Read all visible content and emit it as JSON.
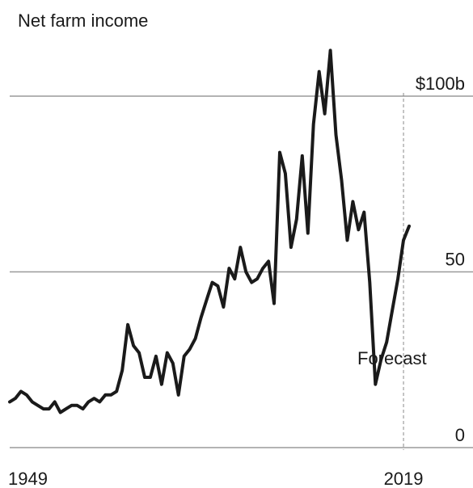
{
  "chart_data": {
    "type": "line",
    "title": "Net farm income",
    "xlabel": "",
    "ylabel": "",
    "x_ticks": [
      1949,
      2019
    ],
    "x_tick_labels": [
      "1949",
      "2019"
    ],
    "xlim": [
      1949,
      2020
    ],
    "ylim": [
      0,
      100
    ],
    "y_ticks": [
      0,
      50,
      100
    ],
    "y_tick_labels": [
      "0",
      "50",
      "$100b"
    ],
    "grid": "horizontal",
    "annotations": [
      {
        "text": "Forecast",
        "x": 2019
      }
    ],
    "forecast_start": 2019,
    "line_color": "#1a1a1a",
    "grid_color": "#9a9a9a",
    "series": [
      {
        "x": [
          1949,
          1950,
          1951,
          1952,
          1953,
          1954,
          1955,
          1956,
          1957,
          1958,
          1959,
          1960,
          1961,
          1962,
          1963,
          1964,
          1965,
          1966,
          1967,
          1968,
          1969,
          1970,
          1971,
          1972,
          1973,
          1974,
          1975,
          1976,
          1977,
          1978,
          1979,
          1980,
          1981,
          1982,
          1983,
          1984,
          1985,
          1986,
          1987,
          1988,
          1989,
          1990,
          1991,
          1992,
          1993,
          1994,
          1995,
          1996,
          1997,
          1998,
          1999,
          2000,
          2001,
          2002,
          2003,
          2004,
          2005,
          2006,
          2007,
          2008,
          2009,
          2010,
          2011,
          2012,
          2013,
          2014,
          2015,
          2016,
          2017,
          2018,
          2019,
          2020
        ],
        "values": [
          13,
          14,
          16,
          15,
          13,
          12,
          11,
          11,
          13,
          10,
          11,
          12,
          12,
          11,
          13,
          14,
          13,
          15,
          15,
          16,
          22,
          35,
          29,
          27,
          20,
          20,
          26,
          18,
          27,
          24,
          15,
          26,
          28,
          31,
          37,
          42,
          47,
          46,
          40,
          51,
          48,
          57,
          50,
          47,
          48,
          51,
          53,
          41,
          84,
          78,
          57,
          65,
          83,
          61,
          92,
          107,
          95,
          113,
          89,
          76,
          59,
          70,
          62,
          67,
          47,
          18,
          25,
          30,
          39,
          48,
          59,
          63
        ]
      }
    ]
  }
}
